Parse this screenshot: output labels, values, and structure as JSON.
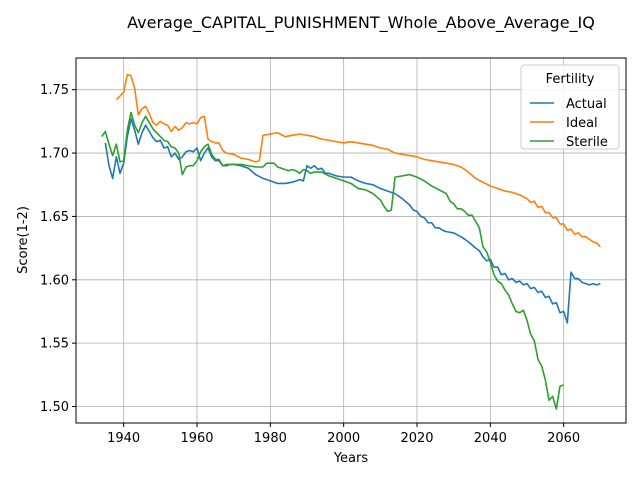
{
  "chart_data": {
    "type": "line",
    "title": "Average_CAPITAL_PUNISHMENT_Whole_Above_Average_IQ",
    "xlabel": "Years",
    "ylabel": "Score(1-2)",
    "xlim": [
      1927,
      2077
    ],
    "ylim": [
      1.487,
      1.775
    ],
    "xticks": [
      1940,
      1960,
      1980,
      2000,
      2020,
      2040,
      2060
    ],
    "yticks": [
      1.5,
      1.55,
      1.6,
      1.65,
      1.7,
      1.75
    ],
    "ytick_labels": [
      "1.50",
      "1.55",
      "1.60",
      "1.65",
      "1.70",
      "1.75"
    ],
    "grid": true,
    "legend": {
      "title": "Fertility",
      "position": "top-right"
    },
    "series": [
      {
        "name": "Actual",
        "color": "#1f77b4",
        "points": [
          [
            1935,
            1.708
          ],
          [
            1936,
            1.69
          ],
          [
            1937,
            1.68
          ],
          [
            1938,
            1.697
          ],
          [
            1939,
            1.684
          ],
          [
            1940,
            1.692
          ],
          [
            1941,
            1.713
          ],
          [
            1942,
            1.727
          ],
          [
            1943,
            1.718
          ],
          [
            1944,
            1.707
          ],
          [
            1945,
            1.716
          ],
          [
            1946,
            1.722
          ],
          [
            1947,
            1.717
          ],
          [
            1948,
            1.712
          ],
          [
            1949,
            1.709
          ],
          [
            1950,
            1.71
          ],
          [
            1951,
            1.704
          ],
          [
            1952,
            1.705
          ],
          [
            1953,
            1.697
          ],
          [
            1954,
            1.7
          ],
          [
            1955,
            1.695
          ],
          [
            1956,
            1.697
          ],
          [
            1957,
            1.701
          ],
          [
            1958,
            1.702
          ],
          [
            1959,
            1.701
          ],
          [
            1960,
            1.704
          ],
          [
            1961,
            1.694
          ],
          [
            1962,
            1.7
          ],
          [
            1963,
            1.704
          ],
          [
            1964,
            1.697
          ],
          [
            1965,
            1.694
          ],
          [
            1966,
            1.694
          ],
          [
            1967,
            1.69
          ],
          [
            1968,
            1.69
          ],
          [
            1969,
            1.691
          ],
          [
            1970,
            1.691
          ],
          [
            1972,
            1.69
          ],
          [
            1974,
            1.688
          ],
          [
            1976,
            1.683
          ],
          [
            1978,
            1.68
          ],
          [
            1980,
            1.678
          ],
          [
            1982,
            1.676
          ],
          [
            1984,
            1.676
          ],
          [
            1986,
            1.677
          ],
          [
            1988,
            1.679
          ],
          [
            1989,
            1.678
          ],
          [
            1990,
            1.69
          ],
          [
            1991,
            1.688
          ],
          [
            1992,
            1.69
          ],
          [
            1993,
            1.687
          ],
          [
            1994,
            1.688
          ],
          [
            1995,
            1.684
          ],
          [
            1996,
            1.684
          ],
          [
            1998,
            1.682
          ],
          [
            2000,
            1.681
          ],
          [
            2002,
            1.681
          ],
          [
            2004,
            1.678
          ],
          [
            2006,
            1.676
          ],
          [
            2008,
            1.675
          ],
          [
            2010,
            1.672
          ],
          [
            2012,
            1.67
          ],
          [
            2014,
            1.668
          ],
          [
            2016,
            1.664
          ],
          [
            2018,
            1.659
          ],
          [
            2019,
            1.655
          ],
          [
            2020,
            1.654
          ],
          [
            2021,
            1.65
          ],
          [
            2022,
            1.649
          ],
          [
            2023,
            1.645
          ],
          [
            2024,
            1.645
          ],
          [
            2025,
            1.641
          ],
          [
            2026,
            1.641
          ],
          [
            2027,
            1.639
          ],
          [
            2028,
            1.638
          ],
          [
            2030,
            1.637
          ],
          [
            2032,
            1.634
          ],
          [
            2034,
            1.63
          ],
          [
            2036,
            1.625
          ],
          [
            2037,
            1.623
          ],
          [
            2038,
            1.618
          ],
          [
            2039,
            1.615
          ],
          [
            2040,
            1.616
          ],
          [
            2041,
            1.61
          ],
          [
            2042,
            1.61
          ],
          [
            2043,
            1.604
          ],
          [
            2044,
            1.605
          ],
          [
            2045,
            1.6
          ],
          [
            2046,
            1.601
          ],
          [
            2047,
            1.598
          ],
          [
            2048,
            1.599
          ],
          [
            2049,
            1.596
          ],
          [
            2050,
            1.597
          ],
          [
            2051,
            1.593
          ],
          [
            2052,
            1.594
          ],
          [
            2053,
            1.59
          ],
          [
            2054,
            1.591
          ],
          [
            2055,
            1.586
          ],
          [
            2056,
            1.587
          ],
          [
            2057,
            1.581
          ],
          [
            2058,
            1.582
          ],
          [
            2059,
            1.574
          ],
          [
            2060,
            1.575
          ],
          [
            2061,
            1.566
          ],
          [
            2062,
            1.606
          ],
          [
            2063,
            1.601
          ],
          [
            2064,
            1.601
          ],
          [
            2065,
            1.598
          ],
          [
            2066,
            1.597
          ],
          [
            2067,
            1.596
          ],
          [
            2068,
            1.597
          ],
          [
            2069,
            1.596
          ],
          [
            2070,
            1.597
          ]
        ]
      },
      {
        "name": "Ideal",
        "color": "#ff7f0e",
        "points": [
          [
            1938,
            1.742
          ],
          [
            1939,
            1.745
          ],
          [
            1940,
            1.748
          ],
          [
            1941,
            1.762
          ],
          [
            1942,
            1.761
          ],
          [
            1943,
            1.751
          ],
          [
            1944,
            1.73
          ],
          [
            1945,
            1.735
          ],
          [
            1946,
            1.737
          ],
          [
            1947,
            1.731
          ],
          [
            1948,
            1.724
          ],
          [
            1949,
            1.722
          ],
          [
            1950,
            1.725
          ],
          [
            1951,
            1.723
          ],
          [
            1952,
            1.722
          ],
          [
            1953,
            1.717
          ],
          [
            1954,
            1.721
          ],
          [
            1955,
            1.718
          ],
          [
            1956,
            1.72
          ],
          [
            1957,
            1.724
          ],
          [
            1958,
            1.723
          ],
          [
            1959,
            1.724
          ],
          [
            1960,
            1.723
          ],
          [
            1961,
            1.728
          ],
          [
            1962,
            1.729
          ],
          [
            1963,
            1.711
          ],
          [
            1964,
            1.709
          ],
          [
            1965,
            1.708
          ],
          [
            1966,
            1.708
          ],
          [
            1967,
            1.702
          ],
          [
            1968,
            1.7
          ],
          [
            1970,
            1.699
          ],
          [
            1972,
            1.696
          ],
          [
            1974,
            1.695
          ],
          [
            1976,
            1.693
          ],
          [
            1977,
            1.694
          ],
          [
            1978,
            1.714
          ],
          [
            1980,
            1.715
          ],
          [
            1982,
            1.716
          ],
          [
            1984,
            1.713
          ],
          [
            1986,
            1.714
          ],
          [
            1988,
            1.715
          ],
          [
            1990,
            1.714
          ],
          [
            1992,
            1.713
          ],
          [
            1994,
            1.711
          ],
          [
            1996,
            1.71
          ],
          [
            1998,
            1.709
          ],
          [
            2000,
            1.708
          ],
          [
            2002,
            1.709
          ],
          [
            2004,
            1.708
          ],
          [
            2006,
            1.707
          ],
          [
            2008,
            1.706
          ],
          [
            2010,
            1.704
          ],
          [
            2012,
            1.703
          ],
          [
            2014,
            1.7
          ],
          [
            2016,
            1.699
          ],
          [
            2018,
            1.698
          ],
          [
            2020,
            1.697
          ],
          [
            2022,
            1.695
          ],
          [
            2024,
            1.694
          ],
          [
            2026,
            1.693
          ],
          [
            2028,
            1.692
          ],
          [
            2030,
            1.691
          ],
          [
            2032,
            1.689
          ],
          [
            2034,
            1.685
          ],
          [
            2036,
            1.68
          ],
          [
            2038,
            1.677
          ],
          [
            2040,
            1.674
          ],
          [
            2042,
            1.672
          ],
          [
            2044,
            1.67
          ],
          [
            2046,
            1.669
          ],
          [
            2048,
            1.667
          ],
          [
            2050,
            1.664
          ],
          [
            2051,
            1.661
          ],
          [
            2052,
            1.662
          ],
          [
            2053,
            1.657
          ],
          [
            2054,
            1.658
          ],
          [
            2055,
            1.653
          ],
          [
            2056,
            1.653
          ],
          [
            2057,
            1.649
          ],
          [
            2058,
            1.649
          ],
          [
            2059,
            1.644
          ],
          [
            2060,
            1.644
          ],
          [
            2061,
            1.639
          ],
          [
            2062,
            1.64
          ],
          [
            2063,
            1.636
          ],
          [
            2064,
            1.637
          ],
          [
            2065,
            1.634
          ],
          [
            2066,
            1.634
          ],
          [
            2067,
            1.632
          ],
          [
            2068,
            1.63
          ],
          [
            2069,
            1.629
          ],
          [
            2070,
            1.626
          ]
        ]
      },
      {
        "name": "Sterile",
        "color": "#2ca02c",
        "points": [
          [
            1934,
            1.713
          ],
          [
            1935,
            1.717
          ],
          [
            1936,
            1.707
          ],
          [
            1937,
            1.698
          ],
          [
            1938,
            1.707
          ],
          [
            1939,
            1.693
          ],
          [
            1940,
            1.694
          ],
          [
            1941,
            1.718
          ],
          [
            1942,
            1.732
          ],
          [
            1943,
            1.722
          ],
          [
            1944,
            1.716
          ],
          [
            1945,
            1.724
          ],
          [
            1946,
            1.729
          ],
          [
            1947,
            1.724
          ],
          [
            1948,
            1.719
          ],
          [
            1949,
            1.716
          ],
          [
            1950,
            1.713
          ],
          [
            1951,
            1.71
          ],
          [
            1952,
            1.709
          ],
          [
            1953,
            1.705
          ],
          [
            1954,
            1.704
          ],
          [
            1955,
            1.7
          ],
          [
            1956,
            1.683
          ],
          [
            1957,
            1.689
          ],
          [
            1958,
            1.69
          ],
          [
            1959,
            1.69
          ],
          [
            1960,
            1.694
          ],
          [
            1961,
            1.701
          ],
          [
            1962,
            1.705
          ],
          [
            1963,
            1.707
          ],
          [
            1964,
            1.699
          ],
          [
            1965,
            1.695
          ],
          [
            1966,
            1.695
          ],
          [
            1967,
            1.69
          ],
          [
            1968,
            1.691
          ],
          [
            1970,
            1.691
          ],
          [
            1972,
            1.691
          ],
          [
            1974,
            1.69
          ],
          [
            1976,
            1.689
          ],
          [
            1978,
            1.689
          ],
          [
            1979,
            1.692
          ],
          [
            1980,
            1.692
          ],
          [
            1981,
            1.692
          ],
          [
            1982,
            1.689
          ],
          [
            1984,
            1.687
          ],
          [
            1985,
            1.686
          ],
          [
            1986,
            1.687
          ],
          [
            1987,
            1.686
          ],
          [
            1988,
            1.684
          ],
          [
            1989,
            1.687
          ],
          [
            1990,
            1.686
          ],
          [
            1991,
            1.684
          ],
          [
            1992,
            1.685
          ],
          [
            1994,
            1.685
          ],
          [
            1996,
            1.682
          ],
          [
            1998,
            1.68
          ],
          [
            2000,
            1.678
          ],
          [
            2002,
            1.676
          ],
          [
            2004,
            1.672
          ],
          [
            2006,
            1.671
          ],
          [
            2008,
            1.668
          ],
          [
            2010,
            1.663
          ],
          [
            2011,
            1.658
          ],
          [
            2012,
            1.654
          ],
          [
            2013,
            1.655
          ],
          [
            2014,
            1.681
          ],
          [
            2016,
            1.682
          ],
          [
            2018,
            1.683
          ],
          [
            2020,
            1.681
          ],
          [
            2022,
            1.678
          ],
          [
            2024,
            1.674
          ],
          [
            2026,
            1.671
          ],
          [
            2028,
            1.668
          ],
          [
            2029,
            1.662
          ],
          [
            2030,
            1.66
          ],
          [
            2031,
            1.656
          ],
          [
            2032,
            1.656
          ],
          [
            2033,
            1.654
          ],
          [
            2034,
            1.651
          ],
          [
            2035,
            1.651
          ],
          [
            2036,
            1.646
          ],
          [
            2037,
            1.641
          ],
          [
            2038,
            1.626
          ],
          [
            2039,
            1.622
          ],
          [
            2040,
            1.614
          ],
          [
            2041,
            1.604
          ],
          [
            2042,
            1.599
          ],
          [
            2043,
            1.597
          ],
          [
            2044,
            1.592
          ],
          [
            2045,
            1.588
          ],
          [
            2046,
            1.581
          ],
          [
            2047,
            1.575
          ],
          [
            2048,
            1.574
          ],
          [
            2049,
            1.576
          ],
          [
            2050,
            1.568
          ],
          [
            2051,
            1.557
          ],
          [
            2052,
            1.552
          ],
          [
            2053,
            1.537
          ],
          [
            2054,
            1.532
          ],
          [
            2055,
            1.521
          ],
          [
            2056,
            1.505
          ],
          [
            2057,
            1.508
          ],
          [
            2058,
            1.498
          ],
          [
            2059,
            1.516
          ],
          [
            2060,
            1.517
          ]
        ]
      }
    ]
  }
}
